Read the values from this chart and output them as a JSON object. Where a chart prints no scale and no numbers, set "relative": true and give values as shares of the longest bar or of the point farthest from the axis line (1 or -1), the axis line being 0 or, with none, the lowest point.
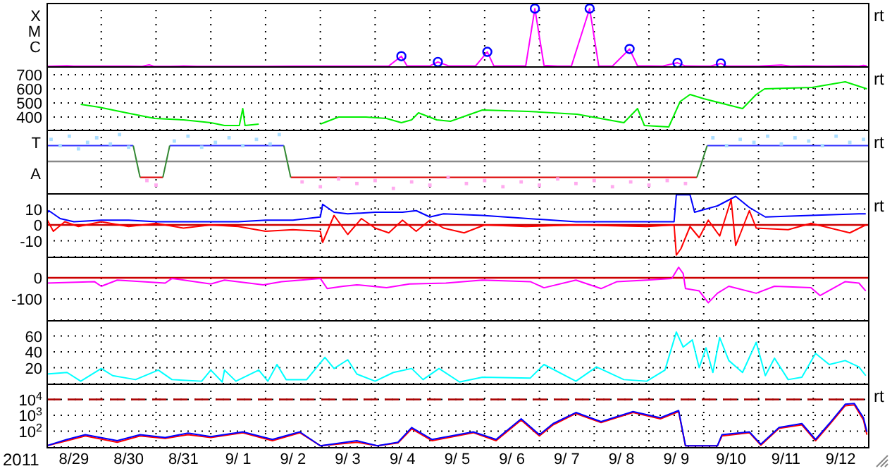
{
  "chart_data": [
    {
      "type": "line",
      "xlim": [
        "2011-08-29",
        "2011-09-13"
      ],
      "xticks": [
        "2011-08-30",
        "2011-08-31",
        "2011-09-01",
        "2011-09-02",
        "2011-09-03",
        "2011-09-04",
        "2011-09-05",
        "2011-09-06",
        "2011-09-07",
        "2011-09-08",
        "2011-09-09",
        "2011-09-10",
        "2011-09-11",
        "2011-09-12"
      ],
      "relative": true,
      "grid": "x",
      "tick_labels": false,
      "marker": "none",
      "annotations": [
        "X",
        "M",
        "C",
        "rt"
      ],
      "series": [
        {
          "color": "#ff00ff",
          "x": [
            "2011-08-29T00:00",
            "2011-08-29T09:00",
            "2011-08-29T12:00",
            "2011-08-29T18:00",
            "2011-08-30T00:00",
            "2011-08-30T06:00",
            "2011-08-30T12:00",
            "2011-08-30T18:00",
            "2011-08-30T21:00",
            "2011-08-30T23:00",
            "2011-08-31T06:00",
            "2011-08-31T12:00",
            "2011-08-31T18:00",
            "2011-09-01T00:00",
            "2011-09-01T12:00",
            "2011-09-02T00:00",
            "2011-09-02T12:00",
            "2011-09-03T00:00",
            "2011-09-03T12:00",
            "2011-09-03T18:00",
            "2011-09-04T00:00",
            "2011-09-04T06:00",
            "2011-09-04T11:30",
            "2011-09-04T14:00",
            "2011-09-04T20:00",
            "2011-09-05T00:00",
            "2011-09-05T03:30",
            "2011-09-05T08:00",
            "2011-09-05T14:00",
            "2011-09-05T20:00",
            "2011-09-06T01:10",
            "2011-09-06T04:00",
            "2011-09-06T12:00",
            "2011-09-06T18:00",
            "2011-09-06T22:00",
            "2011-09-07T02:00",
            "2011-09-07T08:00",
            "2011-09-07T14:00",
            "2011-09-07T22:00",
            "2011-09-08T02:00",
            "2011-09-08T08:00",
            "2011-09-08T15:30",
            "2011-09-08T19:00",
            "2011-09-09T00:00",
            "2011-09-09T06:00",
            "2011-09-09T12:30",
            "2011-09-09T16:00",
            "2011-09-09T22:00",
            "2011-09-10T03:00",
            "2011-09-10T07:30",
            "2011-09-10T10:00",
            "2011-09-10T18:00",
            "2011-09-11T00:00",
            "2011-09-11T10:00",
            "2011-09-11T14:00",
            "2011-09-11T20:00",
            "2011-09-12T06:00",
            "2011-09-12T14:00",
            "2011-09-12T20:00",
            "2011-09-12T22:00",
            "2011-09-12T23:30"
          ],
          "values": [
            0.00125,
            0.01,
            0.003,
            0.0025,
            0.0035,
            0.0035,
            0.0025,
            0.0015,
            0.025,
            0.0015,
            0.0015,
            0.005,
            0.0015,
            0.0015,
            0.0015,
            0.0015,
            0.00175,
            0.002,
            0.002,
            0.003,
            0.004,
            0.006,
            0.175,
            0.0075,
            0.005,
            0.0075,
            0.075,
            0.01,
            0.006,
            0.005,
            0.25,
            0.0075,
            0.0075,
            0.0075,
            1,
            0.015,
            0.0025,
            0.0025,
            1,
            0.004,
            0.003,
            0.3,
            0.005,
            0.0075,
            0.0035,
            0.06,
            0.005,
            0.003,
            0.0025,
            0.05,
            0.004,
            0.0025,
            0.0025,
            0.02,
            0.004,
            0.005,
            0.004,
            0.005,
            0.004,
            0.015,
            0.005
          ]
        },
        {
          "type": "scatter",
          "marker": "circle",
          "color": "#0000ff",
          "x": [
            "2011-09-04T11:30",
            "2011-09-05T03:30",
            "2011-09-06T01:10",
            "2011-09-06T22:00",
            "2011-09-07T22:00",
            "2011-09-08T15:30",
            "2011-09-09T12:30",
            "2011-09-10T07:30"
          ],
          "values": [
            0.175,
            0.075,
            0.25,
            1,
            1,
            0.3,
            0.06,
            0.05
          ]
        }
      ]
    },
    {
      "type": "line",
      "xlim": [
        "2011-08-29",
        "2011-09-13"
      ],
      "xticks": [
        "2011-08-30",
        "2011-08-31",
        "2011-09-01",
        "2011-09-02",
        "2011-09-03",
        "2011-09-04",
        "2011-09-05",
        "2011-09-06",
        "2011-09-07",
        "2011-09-08",
        "2011-09-09",
        "2011-09-10",
        "2011-09-11",
        "2011-09-12"
      ],
      "ylim": [
        310,
        760
      ],
      "yticks": [
        400,
        500,
        600,
        700
      ],
      "grid": true,
      "tick_labels": "y",
      "marker": "none",
      "annotations": [
        "rt"
      ],
      "series": [
        {
          "color": "#00ee00",
          "x": [
            "2011-08-29T15:00",
            "2011-08-29T23:00",
            "2011-08-30T11:00",
            "2011-08-30T23:30",
            "2011-08-31T12:00",
            "2011-09-01T00:00",
            "2011-09-01T06:00",
            "2011-09-01T12:30",
            "2011-09-01T14:00",
            "2011-09-01T15:00",
            "2011-09-01T21:00",
            "2011-09-02T00:00",
            "2011-09-03T00:00",
            "2011-09-03T08:00",
            "2011-09-03T20:00",
            "2011-09-04T05:00",
            "2011-09-04T11:30",
            "2011-09-04T16:00",
            "2011-09-04T19:00",
            "2011-09-05T03:00",
            "2011-09-05T09:00",
            "2011-09-05T23:00",
            "2011-09-06T19:00",
            "2011-09-07T16:30",
            "2011-09-08T13:00",
            "2011-09-08T19:00",
            "2011-09-08T22:00",
            "2011-09-09T08:40",
            "2011-09-09T13:40",
            "2011-09-09T18:00",
            "2011-09-10T00:00",
            "2011-09-10T17:00",
            "2011-09-10T23:00",
            "2011-09-11T02:40",
            "2011-09-11T23:30",
            "2011-09-12T14:00",
            "2011-09-12T23:30"
          ],
          "values": [
            490,
            470,
            430,
            390,
            380,
            360,
            340,
            340,
            460,
            340,
            350,
            null,
            350,
            400,
            400,
            390,
            360,
            380,
            430,
            380,
            370,
            450,
            440,
            420,
            360,
            460,
            340,
            330,
            510,
            560,
            530,
            460,
            560,
            600,
            610,
            650,
            600
          ]
        }
      ]
    },
    {
      "type": "line",
      "xlim": [
        "2011-08-29",
        "2011-09-13"
      ],
      "xticks": [
        "2011-08-30",
        "2011-08-31",
        "2011-09-01",
        "2011-09-02",
        "2011-09-03",
        "2011-09-04",
        "2011-09-05",
        "2011-09-06",
        "2011-09-07",
        "2011-09-08",
        "2011-09-09",
        "2011-09-10",
        "2011-09-11",
        "2011-09-12"
      ],
      "relative": true,
      "grid": "x",
      "tick_labels": false,
      "marker": "none",
      "annotations": [
        "T",
        "A",
        "rt"
      ],
      "ref_lines": [
        {
          "axis": "y",
          "value": 0,
          "color": "#888888"
        }
      ],
      "series": [
        {
          "type": "scatter",
          "marker": "square",
          "color": "#aaddff",
          "x": [
            "2011-08-29T02:00",
            "2011-08-29T06:00",
            "2011-08-29T10:00",
            "2011-08-29T14:00",
            "2011-08-29T18:00",
            "2011-08-29T22:00",
            "2011-08-30T04:00",
            "2011-08-30T08:00",
            "2011-08-30T12:00",
            "2011-08-31T08:00",
            "2011-08-31T14:00",
            "2011-08-31T20:00",
            "2011-09-01T02:00",
            "2011-09-01T08:00",
            "2011-09-01T14:00",
            "2011-09-01T20:00",
            "2011-09-02T02:00",
            "2011-09-02T06:00",
            "2011-09-10T04:00",
            "2011-09-10T10:00",
            "2011-09-10T16:00",
            "2011-09-10T22:00",
            "2011-09-11T04:00",
            "2011-09-11T10:00",
            "2011-09-11T16:00",
            "2011-09-11T22:00",
            "2011-09-12T04:00",
            "2011-09-12T10:00",
            "2011-09-12T16:00",
            "2011-09-12T22:00"
          ],
          "values": [
            0.82,
            0.59,
            0.94,
            0.47,
            0.71,
            0.88,
            0.65,
            1,
            0.53,
            0.76,
            0.94,
            0.53,
            0.71,
            0.88,
            0.59,
            0.82,
            0.65,
            1,
            0.88,
            0.59,
            0.82,
            0.71,
            0.94,
            0.65,
            0.88,
            0.76,
            0.59,
            0.94,
            0.71,
            0.82
          ]
        },
        {
          "type": "scatter",
          "marker": "square",
          "color": "#ffaaee",
          "x": [
            "2011-08-30T20:00",
            "2011-08-31T00:00",
            "2011-09-02T16:00",
            "2011-09-03T00:00",
            "2011-09-03T08:00",
            "2011-09-03T16:00",
            "2011-09-04T00:00",
            "2011-09-04T08:00",
            "2011-09-04T16:00",
            "2011-09-05T00:00",
            "2011-09-05T08:00",
            "2011-09-05T16:00",
            "2011-09-06T00:00",
            "2011-09-06T08:00",
            "2011-09-06T16:00",
            "2011-09-07T00:00",
            "2011-09-07T08:00",
            "2011-09-07T16:00",
            "2011-09-08T00:00",
            "2011-09-08T08:00",
            "2011-09-08T16:00",
            "2011-09-09T00:00",
            "2011-09-09T08:00",
            "2011-09-09T16:00"
          ],
          "values": [
            -0.71,
            -0.88,
            -0.76,
            -0.94,
            -0.65,
            -0.82,
            -0.71,
            -1,
            -0.76,
            -0.88,
            -0.59,
            -0.82,
            -0.71,
            -0.94,
            -0.76,
            -0.88,
            -0.65,
            -0.82,
            -0.71,
            -0.94,
            -0.76,
            -0.88,
            -0.71,
            -0.82
          ]
        },
        {
          "color": "#3333ff",
          "x": [
            "2011-08-29T00:00",
            "2011-08-30T14:00",
            "2011-08-30T15:00",
            "2011-08-31T06:00",
            "2011-09-02T08:00",
            "2011-09-02T09:00",
            "2011-09-10T01:30",
            "2011-09-13T00:00"
          ],
          "values": [
            0.59,
            0.59,
            null,
            0.59,
            0.59,
            null,
            0.59,
            0.59
          ]
        },
        {
          "color": "#dd0000",
          "x": [
            "2011-08-30T17:00",
            "2011-08-31T03:00",
            "2011-08-31T04:00",
            "2011-09-02T11:00",
            "2011-09-09T21:00"
          ],
          "values": [
            -0.59,
            -0.59,
            null,
            -0.59,
            -0.59
          ]
        },
        {
          "color": "#338833",
          "x": [
            "2011-08-30T14:00",
            "2011-08-30T17:00",
            "2011-08-30T20:00",
            "2011-08-31T03:00",
            "2011-08-31T06:00",
            "2011-08-31T07:00",
            "2011-09-02T08:00",
            "2011-09-02T11:00",
            "2011-09-02T12:00",
            "2011-09-09T21:00",
            "2011-09-10T01:30"
          ],
          "values": [
            0.59,
            -0.59,
            null,
            -0.59,
            0.59,
            null,
            0.59,
            -0.59,
            null,
            -0.59,
            0.59
          ]
        }
      ]
    },
    {
      "type": "line",
      "xlim": [
        "2011-08-29",
        "2011-09-13"
      ],
      "xticks": [
        "2011-08-30",
        "2011-08-31",
        "2011-09-01",
        "2011-09-02",
        "2011-09-03",
        "2011-09-04",
        "2011-09-05",
        "2011-09-06",
        "2011-09-07",
        "2011-09-08",
        "2011-09-09",
        "2011-09-10",
        "2011-09-11",
        "2011-09-12"
      ],
      "ylim": [
        -20,
        20
      ],
      "yticks": [
        -10,
        0,
        10
      ],
      "grid": true,
      "tick_labels": "y",
      "marker": "none",
      "annotations": [
        "rt"
      ],
      "ref_lines": [
        {
          "axis": "y",
          "value": 0,
          "color": "#cc0000"
        }
      ],
      "series": [
        {
          "color": "#0000ff",
          "x": [
            "2011-08-29T00:00",
            "2011-08-29T01:00",
            "2011-08-29T06:00",
            "2011-08-29T12:00",
            "2011-08-30T00:00",
            "2011-08-30T12:00",
            "2011-08-31T00:00",
            "2011-08-31T12:00",
            "2011-09-01T00:00",
            "2011-09-01T12:00",
            "2011-09-02T00:00",
            "2011-09-02T12:00",
            "2011-09-03T00:00",
            "2011-09-03T01:00",
            "2011-09-03T06:00",
            "2011-09-03T12:00",
            "2011-09-04T00:00",
            "2011-09-04T12:00",
            "2011-09-04T18:00",
            "2011-09-05T00:00",
            "2011-09-05T06:00",
            "2011-09-05T23:00",
            "2011-09-07T16:00",
            "2011-09-08T23:00",
            "2011-09-09T11:00",
            "2011-09-09T12:00",
            "2011-09-09T18:00",
            "2011-09-09T20:00",
            "2011-09-10T06:00",
            "2011-09-10T14:00",
            "2011-09-10T20:00",
            "2011-09-11T03:00",
            "2011-09-11T23:00",
            "2011-09-12T20:00",
            "2011-09-12T23:00"
          ],
          "values": [
            7,
            9,
            4,
            2,
            3,
            3,
            2,
            2,
            2,
            2,
            3,
            3,
            5,
            13,
            8,
            7,
            8,
            8,
            9,
            5,
            7,
            6,
            2,
            2,
            2,
            19,
            19,
            8,
            12,
            18,
            11,
            5,
            6,
            7,
            7
          ]
        },
        {
          "color": "#ff0000",
          "x": [
            "2011-08-29T00:00",
            "2011-08-29T03:00",
            "2011-08-29T08:00",
            "2011-08-29T14:00",
            "2011-08-30T00:00",
            "2011-08-30T12:00",
            "2011-08-31T00:00",
            "2011-08-31T12:00",
            "2011-09-01T00:00",
            "2011-09-01T12:00",
            "2011-09-02T00:00",
            "2011-09-02T12:00",
            "2011-09-03T00:00",
            "2011-09-03T01:00",
            "2011-09-03T06:00",
            "2011-09-03T12:00",
            "2011-09-03T18:00",
            "2011-09-04T00:00",
            "2011-09-04T06:00",
            "2011-09-04T12:00",
            "2011-09-04T18:00",
            "2011-09-05T00:00",
            "2011-09-05T06:00",
            "2011-09-05T15:00",
            "2011-09-06T00:00",
            "2011-09-06T18:00",
            "2011-09-07T16:00",
            "2011-09-08T23:00",
            "2011-09-09T11:00",
            "2011-09-09T12:00",
            "2011-09-09T14:00",
            "2011-09-09T18:00",
            "2011-09-09T22:00",
            "2011-09-10T02:00",
            "2011-09-10T07:00",
            "2011-09-10T12:00",
            "2011-09-10T14:00",
            "2011-09-10T20:00",
            "2011-09-10T23:00",
            "2011-09-11T13:00",
            "2011-09-11T23:00",
            "2011-09-12T16:00",
            "2011-09-12T23:00"
          ],
          "values": [
            4,
            -4,
            2,
            -1,
            2,
            -1,
            1,
            -2,
            0,
            -1,
            -4,
            -3,
            -4,
            -11,
            6,
            -6,
            4,
            -2,
            -5,
            3,
            -4,
            3,
            -2,
            -5,
            0,
            -1,
            0,
            -1,
            0,
            -19,
            -15,
            -1,
            -8,
            3,
            -7,
            16,
            -13,
            9,
            -2,
            -3,
            1,
            -5,
            0
          ]
        }
      ]
    },
    {
      "type": "line",
      "xlim": [
        "2011-08-29",
        "2011-09-13"
      ],
      "xticks": [
        "2011-08-30",
        "2011-08-31",
        "2011-09-01",
        "2011-09-02",
        "2011-09-03",
        "2011-09-04",
        "2011-09-05",
        "2011-09-06",
        "2011-09-07",
        "2011-09-08",
        "2011-09-09",
        "2011-09-10",
        "2011-09-11",
        "2011-09-12"
      ],
      "ylim": [
        -200,
        100
      ],
      "yticks": [
        -100,
        0
      ],
      "grid": true,
      "tick_labels": "y",
      "marker": "none",
      "ref_lines": [
        {
          "axis": "y",
          "value": 0,
          "color": "#cc0000"
        }
      ],
      "series": [
        {
          "color": "#ff00ff",
          "x": [
            "2011-08-29T00:00",
            "2011-08-29T21:00",
            "2011-08-30T00:00",
            "2011-08-30T07:00",
            "2011-08-31T04:00",
            "2011-08-31T07:00",
            "2011-09-01T00:00",
            "2011-09-01T06:00",
            "2011-09-01T23:00",
            "2011-09-02T07:00",
            "2011-09-03T00:00",
            "2011-09-03T03:00",
            "2011-09-03T10:00",
            "2011-09-03T16:00",
            "2011-09-04T05:00",
            "2011-09-04T15:00",
            "2011-09-05T07:00",
            "2011-09-05T23:00",
            "2011-09-06T20:00",
            "2011-09-07T02:00",
            "2011-09-07T16:00",
            "2011-09-08T03:00",
            "2011-09-08T10:00",
            "2011-09-08T23:00",
            "2011-09-09T10:00",
            "2011-09-09T13:00",
            "2011-09-09T15:00",
            "2011-09-09T16:00",
            "2011-09-09T22:00",
            "2011-09-10T02:00",
            "2011-09-10T06:00",
            "2011-09-10T11:00",
            "2011-09-10T23:00",
            "2011-09-11T07:00",
            "2011-09-11T23:00",
            "2011-09-12T03:00",
            "2011-09-12T14:00",
            "2011-09-12T20:00",
            "2011-09-12T23:00"
          ],
          "values": [
            -25,
            -18,
            -40,
            -11,
            -25,
            -3,
            -29,
            -11,
            -33,
            -18,
            -3,
            -51,
            -40,
            -33,
            -47,
            -29,
            -25,
            -11,
            -18,
            -47,
            -11,
            -51,
            -18,
            -11,
            -3,
            50,
            20,
            -51,
            -62,
            -118,
            -73,
            -40,
            -73,
            -40,
            -47,
            -84,
            -18,
            -25,
            -62
          ]
        }
      ]
    },
    {
      "type": "line",
      "xlim": [
        "2011-08-29",
        "2011-09-13"
      ],
      "xticks": [
        "2011-08-30",
        "2011-08-31",
        "2011-09-01",
        "2011-09-02",
        "2011-09-03",
        "2011-09-04",
        "2011-09-05",
        "2011-09-06",
        "2011-09-07",
        "2011-09-08",
        "2011-09-09",
        "2011-09-10",
        "2011-09-11",
        "2011-09-12"
      ],
      "ylim": [
        0,
        80
      ],
      "yticks": [
        20,
        40,
        60
      ],
      "grid": true,
      "tick_labels": "y",
      "marker": "none",
      "series": [
        {
          "color": "#00ffff",
          "x": [
            "2011-08-29T00:00",
            "2011-08-29T09:00",
            "2011-08-29T15:00",
            "2011-08-30T00:00",
            "2011-08-30T05:00",
            "2011-08-30T15:00",
            "2011-08-31T01:00",
            "2011-08-31T07:00",
            "2011-08-31T20:00",
            "2011-09-01T00:00",
            "2011-09-01T05:00",
            "2011-09-01T06:00",
            "2011-09-01T11:00",
            "2011-09-01T21:00",
            "2011-09-02T01:00",
            "2011-09-02T05:00",
            "2011-09-02T09:00",
            "2011-09-02T18:00",
            "2011-09-03T02:00",
            "2011-09-03T06:00",
            "2011-09-03T12:00",
            "2011-09-03T16:00",
            "2011-09-04T00:00",
            "2011-09-04T08:00",
            "2011-09-04T16:00",
            "2011-09-04T21:00",
            "2011-09-05T04:00",
            "2011-09-05T13:00",
            "2011-09-05T23:00",
            "2011-09-06T20:00",
            "2011-09-07T02:00",
            "2011-09-07T16:00",
            "2011-09-08T01:00",
            "2011-09-08T13:00",
            "2011-09-08T23:00",
            "2011-09-09T07:00",
            "2011-09-09T12:00",
            "2011-09-09T15:00",
            "2011-09-09T19:00",
            "2011-09-09T22:00",
            "2011-09-10T01:00",
            "2011-09-10T04:00",
            "2011-09-10T07:00",
            "2011-09-10T11:00",
            "2011-09-10T17:00",
            "2011-09-10T23:00",
            "2011-09-11T03:00",
            "2011-09-11T07:00",
            "2011-09-11T13:00",
            "2011-09-11T19:00",
            "2011-09-12T01:00",
            "2011-09-12T07:00",
            "2011-09-12T14:00",
            "2011-09-12T20:00",
            "2011-09-12T23:00"
          ],
          "values": [
            12,
            14,
            3,
            19,
            10,
            5,
            17,
            5,
            3,
            17,
            2,
            17,
            3,
            17,
            3,
            24,
            5,
            5,
            33,
            19,
            30,
            12,
            3,
            14,
            19,
            5,
            19,
            2,
            8,
            7,
            24,
            3,
            21,
            5,
            3,
            17,
            65,
            46,
            55,
            20,
            45,
            14,
            58,
            29,
            14,
            52,
            10,
            32,
            5,
            8,
            38,
            24,
            29,
            21,
            10
          ]
        }
      ]
    },
    {
      "type": "line",
      "xlim": [
        "2011-08-29",
        "2011-09-13"
      ],
      "xlabel": "2011",
      "xticks": [
        {
          "value": "2011-08-29T12:00",
          "label": "8/29"
        },
        {
          "value": "2011-08-30",
          "label": null
        },
        {
          "value": "2011-08-30T12:00",
          "label": "8/30"
        },
        {
          "value": "2011-08-31",
          "label": null
        },
        {
          "value": "2011-08-31T12:00",
          "label": "8/31"
        },
        {
          "value": "2011-09-01",
          "label": null
        },
        {
          "value": "2011-09-01T12:00",
          "label": "9/ 1"
        },
        {
          "value": "2011-09-02",
          "label": null
        },
        {
          "value": "2011-09-02T12:00",
          "label": "9/ 2"
        },
        {
          "value": "2011-09-03",
          "label": null
        },
        {
          "value": "2011-09-03T12:00",
          "label": "9/ 3"
        },
        {
          "value": "2011-09-04",
          "label": null
        },
        {
          "value": "2011-09-04T12:00",
          "label": "9/ 4"
        },
        {
          "value": "2011-09-05",
          "label": null
        },
        {
          "value": "2011-09-05T12:00",
          "label": "9/ 5"
        },
        {
          "value": "2011-09-06",
          "label": null
        },
        {
          "value": "2011-09-06T12:00",
          "label": "9/ 6"
        },
        {
          "value": "2011-09-07",
          "label": null
        },
        {
          "value": "2011-09-07T12:00",
          "label": "9/ 7"
        },
        {
          "value": "2011-09-08",
          "label": null
        },
        {
          "value": "2011-09-08T12:00",
          "label": "9/ 8"
        },
        {
          "value": "2011-09-09",
          "label": null
        },
        {
          "value": "2011-09-09T12:00",
          "label": "9/ 9"
        },
        {
          "value": "2011-09-10",
          "label": null
        },
        {
          "value": "2011-09-10T12:00",
          "label": "9/10"
        },
        {
          "value": "2011-09-11",
          "label": null
        },
        {
          "value": "2011-09-11T12:00",
          "label": "9/11"
        },
        {
          "value": "2011-09-12",
          "label": null
        },
        {
          "value": "2011-09-12T12:00",
          "label": "9/12"
        }
      ],
      "log": true,
      "ylim": [
        10,
        100000
      ],
      "yticks": [
        {
          "value": 100,
          "label": "10$^{2}$"
        },
        {
          "value": 1000,
          "label": "10$^{3}$"
        },
        {
          "value": 10000,
          "label": "10$^{4}$"
        }
      ],
      "grid": true,
      "marker": "none",
      "annotations": [
        "rt"
      ],
      "ref_lines": [
        {
          "axis": "y",
          "value": 10000,
          "color": "#aa0000",
          "line_style": "dashed"
        }
      ],
      "x": [
        "2011-08-29T00:00",
        "2011-08-29T09:00",
        "2011-08-29T17:00",
        "2011-08-30T07:00",
        "2011-08-30T17:00",
        "2011-08-31T04:00",
        "2011-08-31T14:00",
        "2011-09-01T00:00",
        "2011-09-01T14:00",
        "2011-09-02T03:00",
        "2011-09-02T15:00",
        "2011-09-03T00:00",
        "2011-09-03T16:00",
        "2011-09-04T01:00",
        "2011-09-04T10:00",
        "2011-09-04T16:00",
        "2011-09-05T01:00",
        "2011-09-05T19:00",
        "2011-09-06T05:00",
        "2011-09-06T16:00",
        "2011-09-07T00:00",
        "2011-09-07T06:00",
        "2011-09-07T16:00",
        "2011-09-08T03:00",
        "2011-09-08T17:00",
        "2011-09-09T05:00",
        "2011-09-09T13:00",
        "2011-09-09T16:00",
        "2011-09-10T06:00",
        "2011-09-10T08:00",
        "2011-09-10T20:00",
        "2011-09-11T01:00",
        "2011-09-11T09:00",
        "2011-09-11T19:00",
        "2011-09-12T01:00",
        "2011-09-12T07:00",
        "2011-09-12T14:00",
        "2011-09-12T18:00",
        "2011-09-12T22:00",
        "2011-09-12T23:30"
      ],
      "series": [
        {
          "color": "#ff0000",
          "values": [
            12,
            25,
            50,
            20,
            50,
            35,
            60,
            40,
            80,
            25,
            80,
            12,
            20,
            12,
            18,
            140,
            25,
            80,
            25,
            500,
            50,
            250,
            1300,
            350,
            1500,
            600,
            1700,
            12,
            12,
            50,
            80,
            13,
            150,
            250,
            25,
            250,
            4000,
            4500,
            500,
            60
          ]
        },
        {
          "color": "#0000ff",
          "values": [
            12,
            30,
            60,
            25,
            60,
            40,
            75,
            45,
            90,
            30,
            90,
            12,
            25,
            12,
            20,
            170,
            30,
            90,
            30,
            600,
            60,
            300,
            1500,
            400,
            1700,
            700,
            2000,
            12,
            12,
            60,
            90,
            15,
            170,
            300,
            30,
            300,
            5000,
            5500,
            700,
            90
          ]
        }
      ]
    }
  ]
}
